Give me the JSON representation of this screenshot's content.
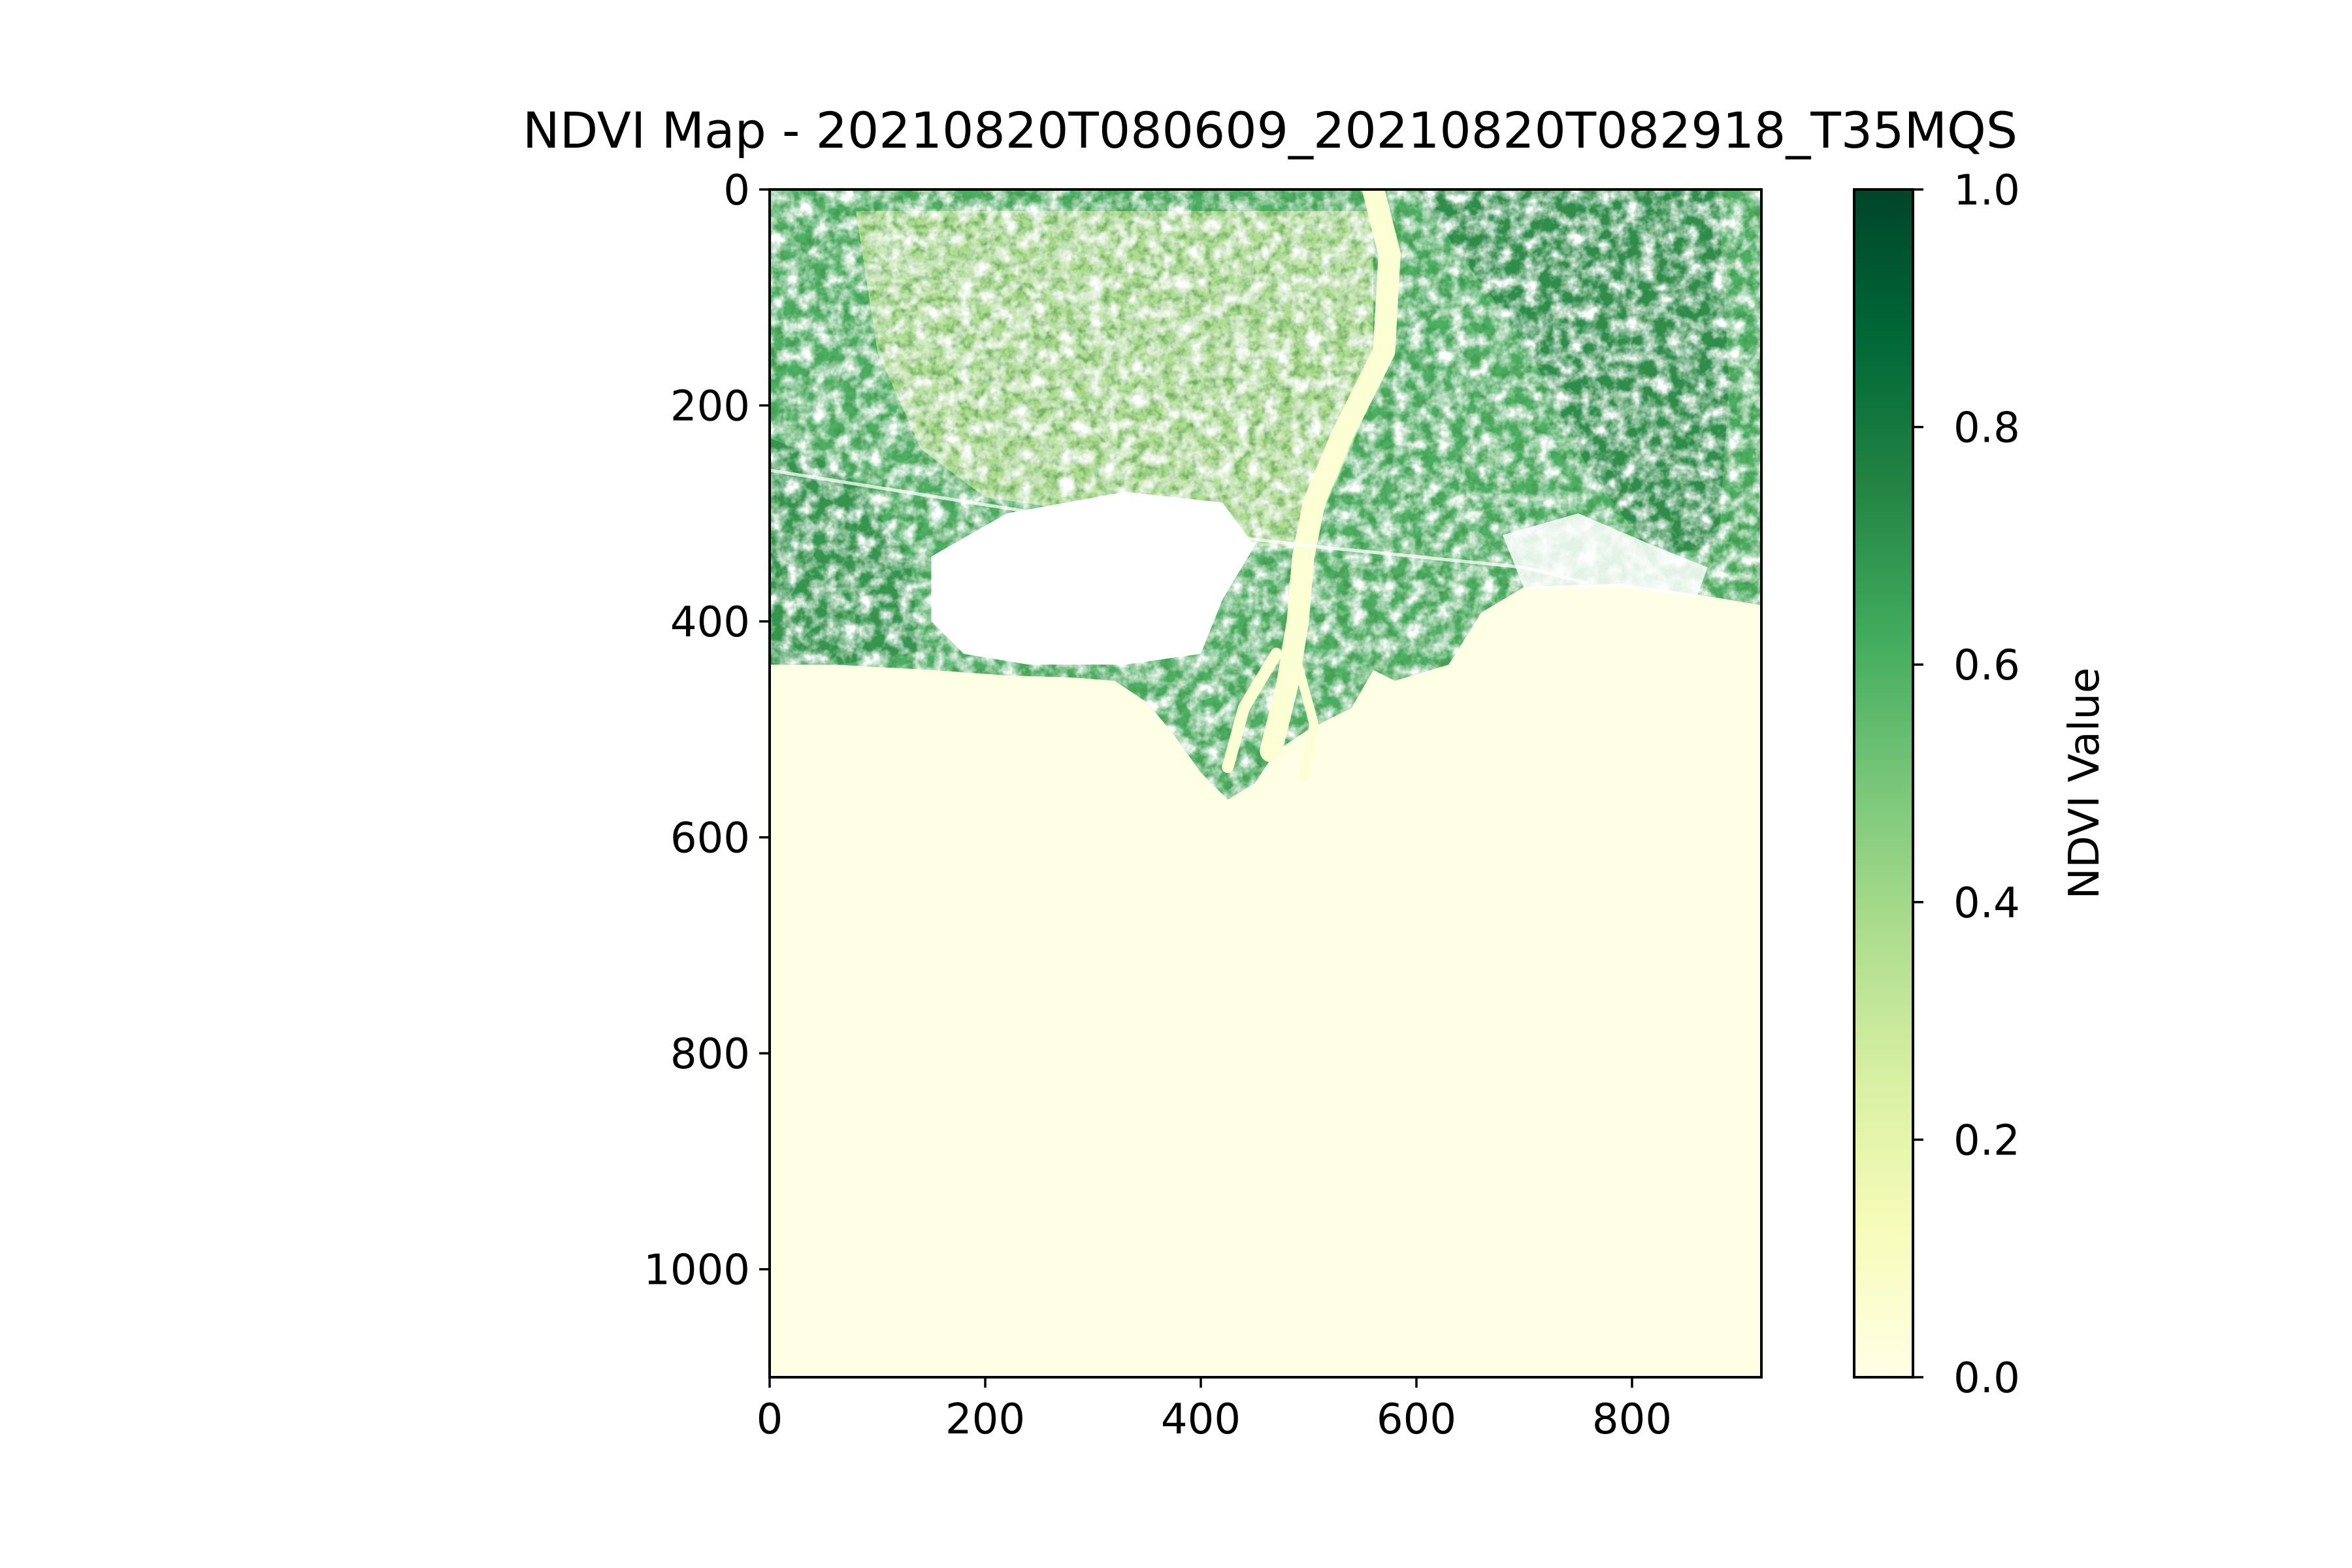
{
  "chart_data": {
    "type": "heatmap",
    "title": "NDVI Map - 20210820T080609_20210820T082918_T35MQS",
    "xlabel": "",
    "ylabel": "",
    "xlim": [
      0,
      920
    ],
    "ylim": [
      1100,
      0
    ],
    "x_ticks": [
      0,
      200,
      400,
      600,
      800
    ],
    "y_ticks": [
      0,
      200,
      400,
      600,
      800,
      1000
    ],
    "colormap": "YlGn",
    "colorbar": {
      "label": "NDVI Value",
      "range": [
        0.0,
        1.0
      ],
      "ticks": [
        "0.0",
        "0.2",
        "0.4",
        "0.6",
        "0.8",
        "1.0"
      ],
      "colors": [
        "#ffffe5",
        "#f7fcb9",
        "#d9f0a3",
        "#addd8e",
        "#78c679",
        "#41ab5d",
        "#238443",
        "#006837",
        "#004529"
      ]
    },
    "grid": false,
    "regions": [
      {
        "name": "sea",
        "ndvi_approx": 0.0
      },
      {
        "name": "land",
        "ndvi_approx": 0.6
      },
      {
        "name": "river",
        "ndvi_approx": 0.05
      },
      {
        "name": "no-data",
        "ndvi_approx": null
      }
    ]
  }
}
